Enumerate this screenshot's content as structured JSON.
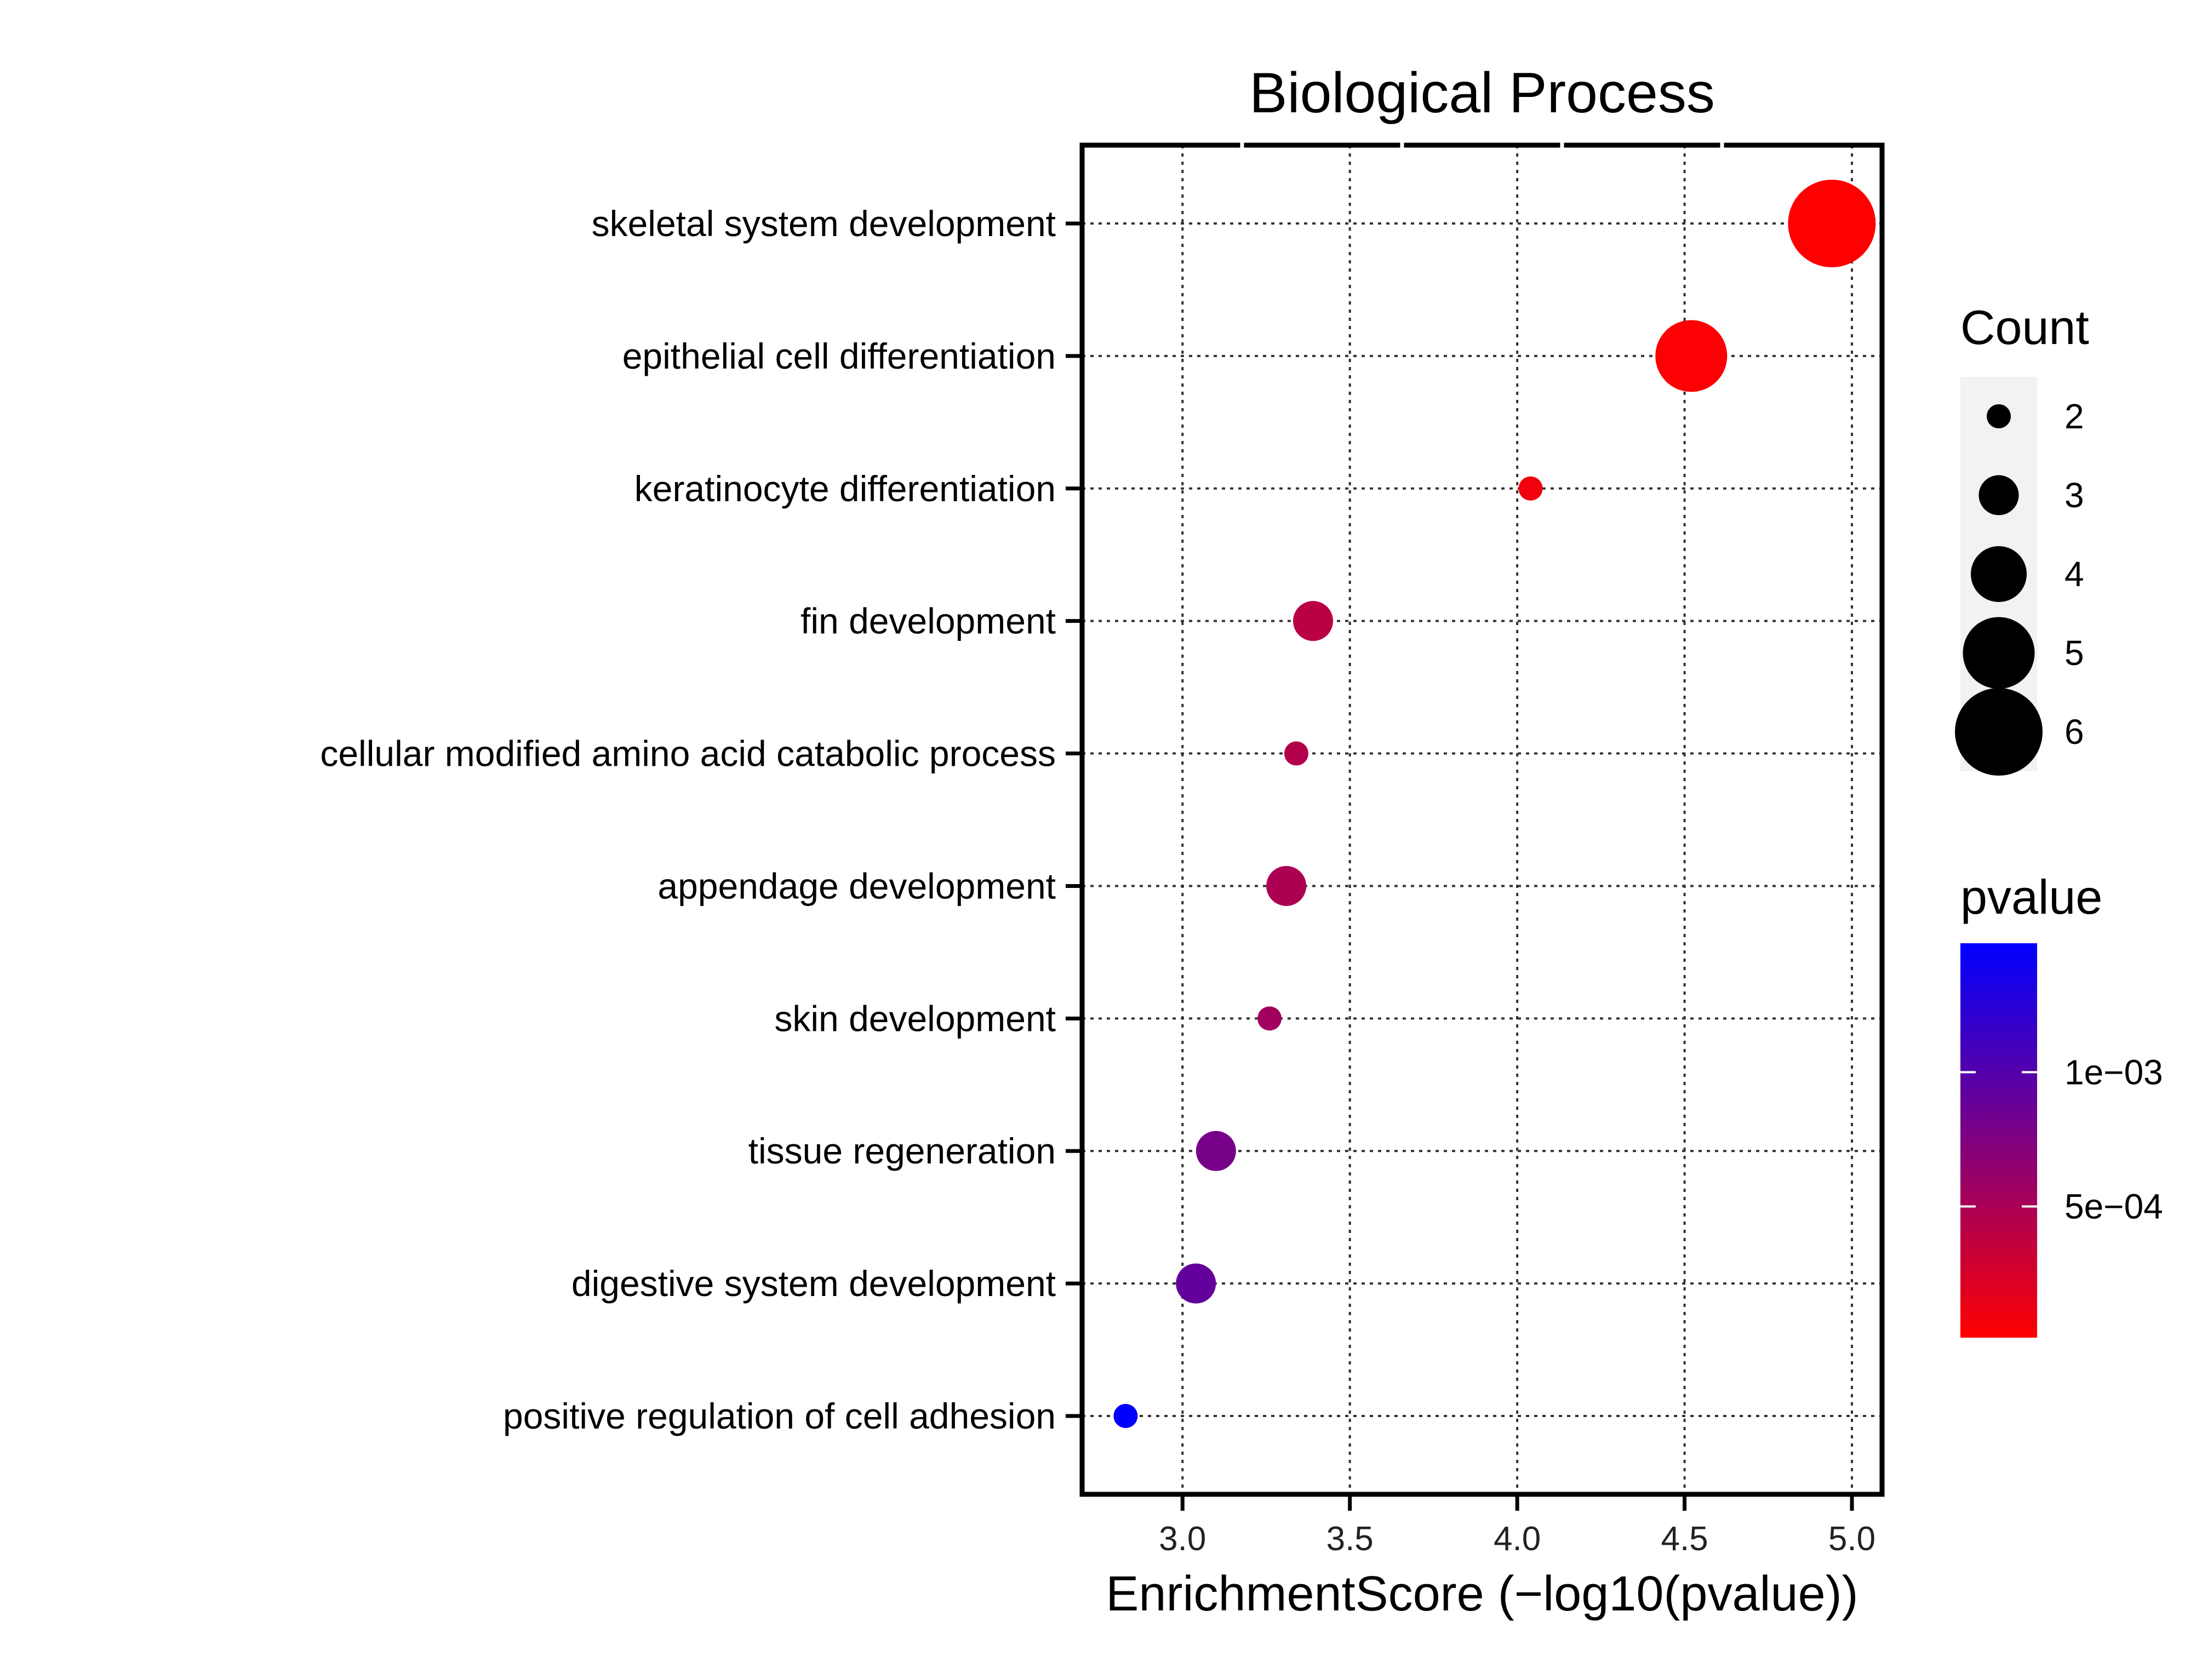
{
  "chart_data": {
    "type": "scatter",
    "title": "Biological Process",
    "xlabel": "EnrichmentScore (−log10(pvalue))",
    "ylabel": "",
    "xlim": [
      2.7,
      5.09
    ],
    "x_ticks": [
      3.0,
      3.5,
      4.0,
      4.5,
      5.0
    ],
    "x_tick_labels": [
      "3.0",
      "3.5",
      "4.0",
      "4.5",
      "5.0"
    ],
    "grid": true,
    "grid_style": "dotted",
    "legend_placement": "right",
    "categories": [
      "skeletal system development",
      "epithelial cell differentiation",
      "keratinocyte differentiation",
      "fin development",
      "cellular modified amino acid catabolic process",
      "appendage development",
      "skin development",
      "tissue regeneration",
      "digestive system development",
      "positive regulation of cell adhesion"
    ],
    "points": [
      {
        "term": "skeletal system development",
        "enrichment_score": 4.94,
        "count": 6,
        "pvalue": 1.15e-05
      },
      {
        "term": "epithelial cell differentiation",
        "enrichment_score": 4.52,
        "count": 5,
        "pvalue": 3.02e-05
      },
      {
        "term": "keratinocyte differentiation",
        "enrichment_score": 4.04,
        "count": 2,
        "pvalue": 9.12e-05
      },
      {
        "term": "fin development",
        "enrichment_score": 3.39,
        "count": 3,
        "pvalue": 0.000407
      },
      {
        "term": "cellular modified amino acid catabolic process",
        "enrichment_score": 3.34,
        "count": 2,
        "pvalue": 0.000457
      },
      {
        "term": "appendage development",
        "enrichment_score": 3.31,
        "count": 3,
        "pvalue": 0.00049
      },
      {
        "term": "skin development",
        "enrichment_score": 3.26,
        "count": 2,
        "pvalue": 0.00055
      },
      {
        "term": "tissue regeneration",
        "enrichment_score": 3.1,
        "count": 3,
        "pvalue": 0.000794
      },
      {
        "term": "digestive system development",
        "enrichment_score": 3.04,
        "count": 3,
        "pvalue": 0.000912
      },
      {
        "term": "positive regulation of cell adhesion",
        "enrichment_score": 2.83,
        "count": 2,
        "pvalue": 0.00148
      }
    ],
    "size_legend": {
      "title": "Count",
      "values": [
        2,
        3,
        4,
        5,
        6
      ],
      "labels": [
        "2",
        "3",
        "4",
        "5",
        "6"
      ]
    },
    "color_legend": {
      "title": "pvalue",
      "low_color": "#ff0000",
      "high_color": "#0000ff",
      "range": [
        1.15e-05,
        0.00148
      ],
      "ticks": [
        0.0005,
        0.001
      ],
      "tick_labels": [
        "5e−04",
        "1e−03"
      ]
    }
  }
}
